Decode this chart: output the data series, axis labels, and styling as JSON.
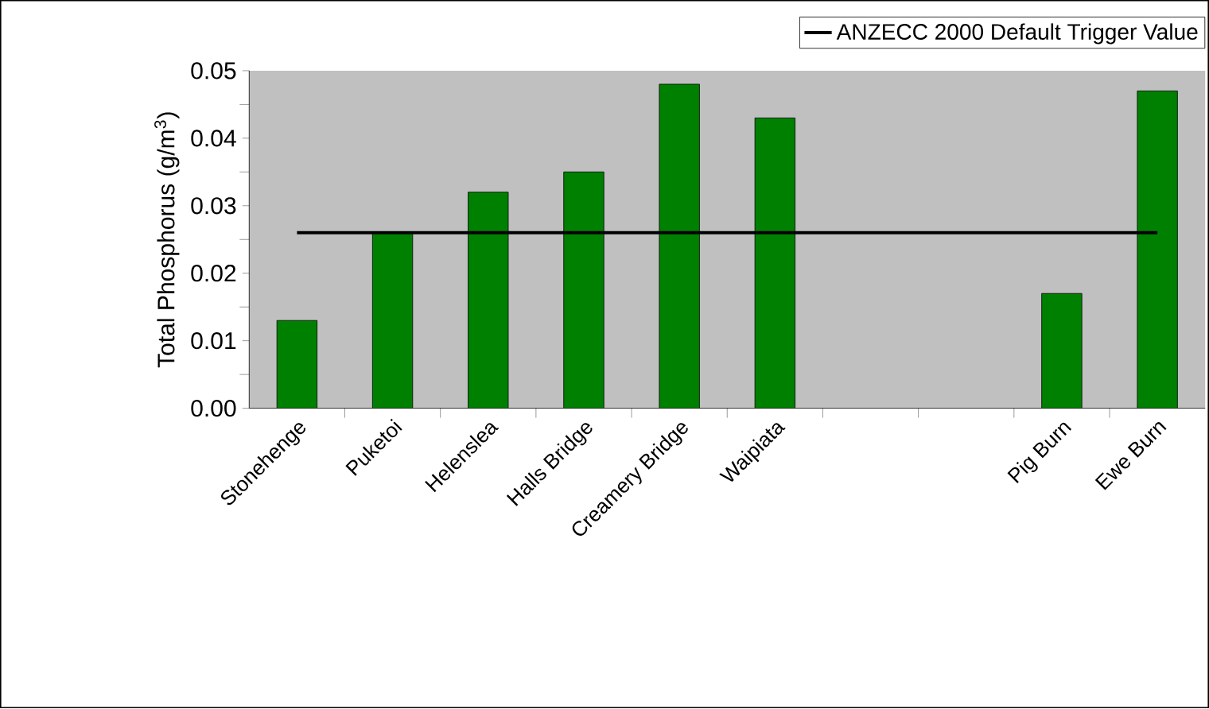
{
  "chart_data": {
    "type": "bar",
    "ylabel": "Total Phosphorus (g/m$^{3}$)",
    "categories": [
      "Stonehenge",
      "Puketoi",
      "Helenslea",
      "Halls Bridge",
      "Creamery Bridge",
      "Waipiata",
      null,
      null,
      "Pig Burn",
      "Ewe Burn"
    ],
    "values": [
      0.013,
      0.026,
      0.032,
      0.035,
      0.048,
      0.043,
      null,
      null,
      0.017,
      0.047
    ],
    "color": "#008000",
    "ylim": [
      0,
      0.05
    ],
    "yticks": [
      {
        "value": 0,
        "label": "0.00"
      },
      {
        "value": 0.01,
        "label": "0.01"
      },
      {
        "value": 0.02,
        "label": "0.02"
      },
      {
        "value": 0.03,
        "label": "0.03"
      },
      {
        "value": 0.04,
        "label": "0.04"
      },
      {
        "value": 0.05,
        "label": "0.05"
      }
    ],
    "ref_lines": [
      {
        "axis": "y",
        "value": 0.026,
        "label": "ANZECC 2000 Default Trigger Value",
        "color": "#000000",
        "line_style": "solid"
      }
    ],
    "grid": false,
    "legend": "top right"
  }
}
